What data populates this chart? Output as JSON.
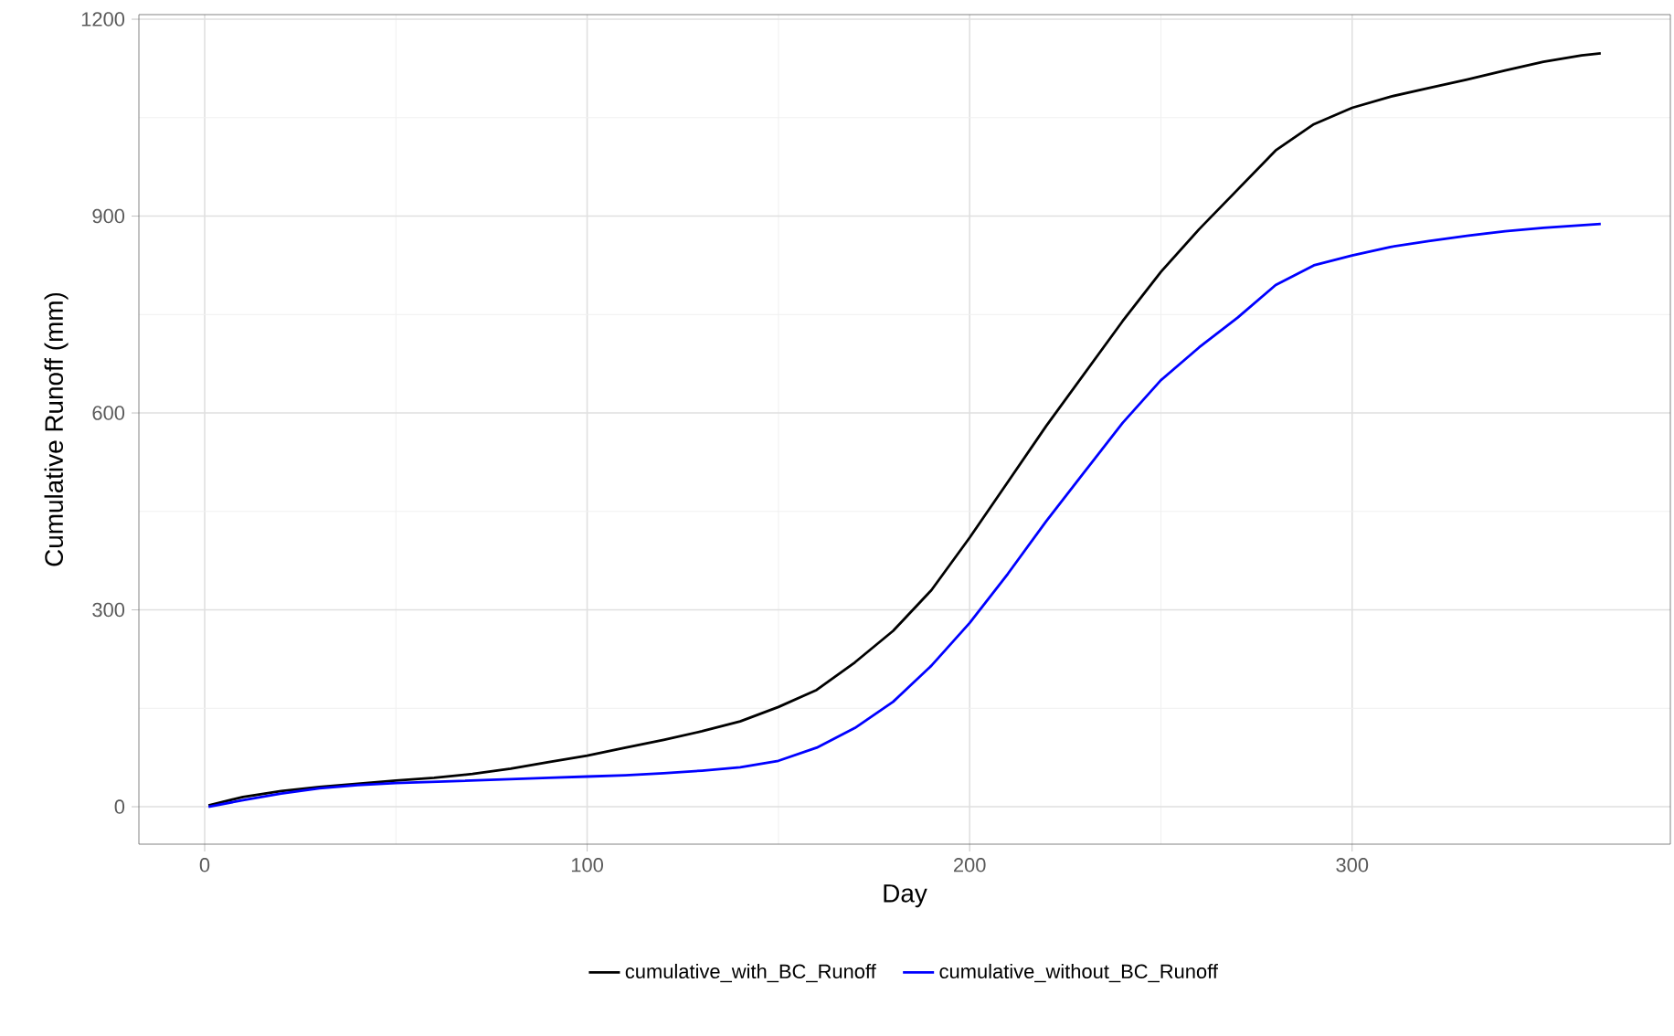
{
  "chart_data": {
    "type": "line",
    "xlabel": "Day",
    "ylabel": "Cumulative Runoff (mm)",
    "xlim": [
      -17.2,
      383.2
    ],
    "ylim": [
      -57,
      1207
    ],
    "xticks": [
      0,
      100,
      200,
      300
    ],
    "yticks": [
      0,
      300,
      600,
      900,
      1200
    ],
    "grid": true,
    "legend": "bottom",
    "marker": "none",
    "line_style": "solid",
    "x": [
      1,
      10,
      20,
      30,
      40,
      50,
      60,
      70,
      80,
      90,
      100,
      110,
      120,
      130,
      140,
      150,
      160,
      170,
      180,
      190,
      200,
      210,
      220,
      230,
      240,
      250,
      260,
      270,
      280,
      290,
      300,
      310,
      320,
      330,
      340,
      350,
      360,
      365
    ],
    "series": [
      {
        "name": "cumulative_with_BC_Runoff",
        "color": "#000000",
        "values": [
          2,
          15,
          24,
          30,
          35,
          40,
          44,
          50,
          58,
          68,
          78,
          90,
          102,
          115,
          130,
          152,
          178,
          220,
          268,
          330,
          410,
          495,
          580,
          660,
          740,
          815,
          880,
          940,
          1000,
          1040,
          1065,
          1082,
          1095,
          1108,
          1122,
          1135,
          1145,
          1148
        ]
      },
      {
        "name": "cumulative_without_BC_Runoff",
        "color": "#0000ff",
        "values": [
          0,
          10,
          20,
          28,
          33,
          36,
          38,
          40,
          42,
          44,
          46,
          48,
          51,
          55,
          60,
          70,
          90,
          120,
          160,
          215,
          280,
          355,
          435,
          510,
          585,
          650,
          700,
          745,
          795,
          825,
          840,
          853,
          862,
          870,
          877,
          882,
          886,
          888
        ]
      }
    ]
  }
}
